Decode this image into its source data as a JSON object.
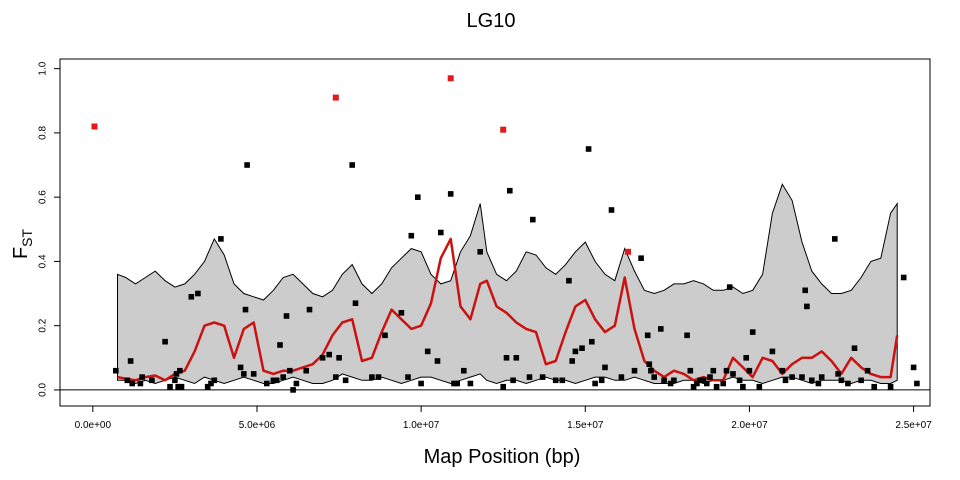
{
  "chart_data": {
    "type": "scatter",
    "title": "LG10",
    "xlabel": "Map Position (bp)",
    "ylabel": {
      "main": "F",
      "sub": "ST"
    },
    "xlim": [
      -1000000,
      25500000
    ],
    "ylim": [
      -0.05,
      1.03
    ],
    "xticks": [
      0,
      5000000,
      10000000,
      15000000,
      20000000,
      25000000
    ],
    "xtick_labels": [
      "0.0e+00",
      "5.0e+06",
      "1.0e+07",
      "1.5e+07",
      "2.0e+07",
      "2.5e+07"
    ],
    "yticks": [
      0.0,
      0.2,
      0.4,
      0.6,
      0.8,
      1.0
    ],
    "ytick_labels": [
      "0.0",
      "0.2",
      "0.4",
      "0.6",
      "0.8",
      "1.0"
    ],
    "reference_line_y": 0,
    "colors": {
      "background": "#ffffff",
      "points": "#000000",
      "outlier_points": "#e31a1c",
      "mean_line": "#cc1111",
      "envelope_fill": "#cccccc",
      "envelope_stroke": "#000000"
    },
    "envelope": {
      "x": [
        750000,
        1000000,
        1300000,
        1600000,
        1900000,
        2200000,
        2500000,
        2800000,
        3100000,
        3400000,
        3700000,
        4000000,
        4300000,
        4600000,
        4900000,
        5200000,
        5500000,
        5800000,
        6100000,
        6400000,
        6700000,
        7000000,
        7300000,
        7600000,
        7900000,
        8200000,
        8500000,
        8800000,
        9100000,
        9400000,
        9700000,
        10000000,
        10300000,
        10600000,
        10900000,
        11200000,
        11500000,
        11800000,
        12000000,
        12300000,
        12600000,
        12900000,
        13200000,
        13500000,
        13800000,
        14100000,
        14400000,
        14700000,
        15000000,
        15300000,
        15600000,
        15900000,
        16200000,
        16500000,
        16800000,
        17100000,
        17400000,
        17700000,
        18000000,
        18300000,
        18600000,
        18900000,
        19200000,
        19500000,
        19800000,
        20100000,
        20400000,
        20700000,
        21000000,
        21300000,
        21600000,
        21900000,
        22200000,
        22500000,
        22800000,
        23100000,
        23400000,
        23700000,
        24000000,
        24300000,
        24500000
      ],
      "upper": [
        0.36,
        0.35,
        0.33,
        0.35,
        0.37,
        0.34,
        0.32,
        0.33,
        0.36,
        0.4,
        0.47,
        0.42,
        0.33,
        0.3,
        0.29,
        0.28,
        0.31,
        0.35,
        0.36,
        0.33,
        0.3,
        0.29,
        0.31,
        0.36,
        0.39,
        0.33,
        0.3,
        0.33,
        0.38,
        0.41,
        0.44,
        0.43,
        0.36,
        0.33,
        0.34,
        0.43,
        0.48,
        0.58,
        0.43,
        0.36,
        0.34,
        0.37,
        0.43,
        0.42,
        0.38,
        0.36,
        0.39,
        0.43,
        0.46,
        0.4,
        0.36,
        0.34,
        0.44,
        0.37,
        0.31,
        0.3,
        0.31,
        0.33,
        0.33,
        0.34,
        0.33,
        0.31,
        0.31,
        0.32,
        0.3,
        0.31,
        0.36,
        0.55,
        0.64,
        0.59,
        0.46,
        0.37,
        0.33,
        0.3,
        0.3,
        0.31,
        0.35,
        0.4,
        0.41,
        0.55,
        0.58
      ],
      "lower": [
        0.03,
        0.03,
        0.02,
        0.03,
        0.02,
        0.03,
        0.04,
        0.03,
        0.02,
        0.04,
        0.03,
        0.02,
        0.03,
        0.04,
        0.03,
        0.02,
        0.02,
        0.03,
        0.04,
        0.03,
        0.02,
        0.02,
        0.03,
        0.05,
        0.04,
        0.03,
        0.03,
        0.04,
        0.03,
        0.02,
        0.03,
        0.04,
        0.04,
        0.03,
        0.02,
        0.03,
        0.04,
        0.05,
        0.03,
        0.02,
        0.03,
        0.03,
        0.02,
        0.03,
        0.04,
        0.03,
        0.03,
        0.02,
        0.03,
        0.04,
        0.04,
        0.03,
        0.03,
        0.04,
        0.03,
        0.02,
        0.02,
        0.02,
        0.03,
        0.03,
        0.02,
        0.03,
        0.03,
        0.04,
        0.03,
        0.03,
        0.02,
        0.03,
        0.04,
        0.04,
        0.03,
        0.02,
        0.03,
        0.03,
        0.03,
        0.02,
        0.03,
        0.03,
        0.02,
        0.02,
        0.03
      ]
    },
    "mean_line": {
      "x": [
        750000,
        1000000,
        1300000,
        1600000,
        1900000,
        2200000,
        2500000,
        2800000,
        3100000,
        3400000,
        3700000,
        4000000,
        4300000,
        4600000,
        4900000,
        5200000,
        5500000,
        5800000,
        6100000,
        6400000,
        6700000,
        7000000,
        7300000,
        7600000,
        7900000,
        8200000,
        8500000,
        8800000,
        9100000,
        9400000,
        9700000,
        10000000,
        10300000,
        10600000,
        10900000,
        11200000,
        11500000,
        11800000,
        12000000,
        12300000,
        12600000,
        12900000,
        13200000,
        13500000,
        13800000,
        14100000,
        14400000,
        14700000,
        15000000,
        15300000,
        15600000,
        15900000,
        16200000,
        16500000,
        16800000,
        17100000,
        17400000,
        17700000,
        18000000,
        18300000,
        18600000,
        18900000,
        19200000,
        19500000,
        19800000,
        20100000,
        20400000,
        20700000,
        21000000,
        21300000,
        21600000,
        21900000,
        22200000,
        22500000,
        22800000,
        23100000,
        23400000,
        23700000,
        24000000,
        24300000,
        24500000
      ],
      "y": [
        0.04,
        0.035,
        0.03,
        0.04,
        0.045,
        0.03,
        0.05,
        0.06,
        0.12,
        0.2,
        0.21,
        0.2,
        0.1,
        0.19,
        0.21,
        0.06,
        0.05,
        0.06,
        0.06,
        0.07,
        0.08,
        0.11,
        0.17,
        0.21,
        0.22,
        0.09,
        0.1,
        0.18,
        0.25,
        0.22,
        0.19,
        0.2,
        0.27,
        0.41,
        0.47,
        0.26,
        0.22,
        0.33,
        0.34,
        0.26,
        0.24,
        0.21,
        0.19,
        0.18,
        0.08,
        0.09,
        0.18,
        0.26,
        0.28,
        0.22,
        0.18,
        0.2,
        0.35,
        0.19,
        0.09,
        0.06,
        0.04,
        0.06,
        0.05,
        0.03,
        0.04,
        0.03,
        0.03,
        0.1,
        0.07,
        0.04,
        0.1,
        0.09,
        0.05,
        0.08,
        0.1,
        0.1,
        0.12,
        0.09,
        0.05,
        0.1,
        0.07,
        0.05,
        0.04,
        0.04,
        0.17
      ]
    },
    "points": [
      {
        "x": 700000,
        "y": 0.06
      },
      {
        "x": 1050000,
        "y": 0.03
      },
      {
        "x": 1150000,
        "y": 0.09
      },
      {
        "x": 1200000,
        "y": 0.02
      },
      {
        "x": 1450000,
        "y": 0.02
      },
      {
        "x": 1500000,
        "y": 0.04
      },
      {
        "x": 1800000,
        "y": 0.03
      },
      {
        "x": 2200000,
        "y": 0.15
      },
      {
        "x": 2350000,
        "y": 0.01
      },
      {
        "x": 2500000,
        "y": 0.03
      },
      {
        "x": 2550000,
        "y": 0.05
      },
      {
        "x": 2600000,
        "y": 0.01
      },
      {
        "x": 2650000,
        "y": 0.06
      },
      {
        "x": 2700000,
        "y": 0.01
      },
      {
        "x": 3000000,
        "y": 0.29
      },
      {
        "x": 3200000,
        "y": 0.3
      },
      {
        "x": 3500000,
        "y": 0.01
      },
      {
        "x": 3600000,
        "y": 0.02
      },
      {
        "x": 3700000,
        "y": 0.03
      },
      {
        "x": 3900000,
        "y": 0.47
      },
      {
        "x": 4500000,
        "y": 0.07
      },
      {
        "x": 4600000,
        "y": 0.05
      },
      {
        "x": 4650000,
        "y": 0.25
      },
      {
        "x": 4700000,
        "y": 0.7
      },
      {
        "x": 4900000,
        "y": 0.05
      },
      {
        "x": 5300000,
        "y": 0.02
      },
      {
        "x": 5500000,
        "y": 0.03
      },
      {
        "x": 5600000,
        "y": 0.03
      },
      {
        "x": 5700000,
        "y": 0.14
      },
      {
        "x": 5800000,
        "y": 0.04
      },
      {
        "x": 5900000,
        "y": 0.23
      },
      {
        "x": 6000000,
        "y": 0.06
      },
      {
        "x": 6100000,
        "y": 0.0
      },
      {
        "x": 6200000,
        "y": 0.02
      },
      {
        "x": 6500000,
        "y": 0.06
      },
      {
        "x": 6600000,
        "y": 0.25
      },
      {
        "x": 7000000,
        "y": 0.1
      },
      {
        "x": 7200000,
        "y": 0.11
      },
      {
        "x": 7400000,
        "y": 0.04
      },
      {
        "x": 7500000,
        "y": 0.1
      },
      {
        "x": 7700000,
        "y": 0.03
      },
      {
        "x": 7900000,
        "y": 0.7
      },
      {
        "x": 8000000,
        "y": 0.27
      },
      {
        "x": 8500000,
        "y": 0.04
      },
      {
        "x": 8700000,
        "y": 0.04
      },
      {
        "x": 8900000,
        "y": 0.17
      },
      {
        "x": 9400000,
        "y": 0.24
      },
      {
        "x": 9600000,
        "y": 0.04
      },
      {
        "x": 9700000,
        "y": 0.48
      },
      {
        "x": 9900000,
        "y": 0.6
      },
      {
        "x": 10000000,
        "y": 0.02
      },
      {
        "x": 10200000,
        "y": 0.12
      },
      {
        "x": 10500000,
        "y": 0.09
      },
      {
        "x": 10600000,
        "y": 0.49
      },
      {
        "x": 10900000,
        "y": 0.61
      },
      {
        "x": 11000000,
        "y": 0.02
      },
      {
        "x": 11100000,
        "y": 0.02
      },
      {
        "x": 11300000,
        "y": 0.06
      },
      {
        "x": 11500000,
        "y": 0.02
      },
      {
        "x": 11800000,
        "y": 0.43
      },
      {
        "x": 12500000,
        "y": 0.01
      },
      {
        "x": 12600000,
        "y": 0.1
      },
      {
        "x": 12700000,
        "y": 0.62
      },
      {
        "x": 12800000,
        "y": 0.03
      },
      {
        "x": 12900000,
        "y": 0.1
      },
      {
        "x": 13300000,
        "y": 0.04
      },
      {
        "x": 13400000,
        "y": 0.53
      },
      {
        "x": 13700000,
        "y": 0.04
      },
      {
        "x": 14100000,
        "y": 0.03
      },
      {
        "x": 14300000,
        "y": 0.03
      },
      {
        "x": 14500000,
        "y": 0.34
      },
      {
        "x": 14600000,
        "y": 0.09
      },
      {
        "x": 14700000,
        "y": 0.12
      },
      {
        "x": 14900000,
        "y": 0.13
      },
      {
        "x": 15100000,
        "y": 0.75
      },
      {
        "x": 15200000,
        "y": 0.15
      },
      {
        "x": 15300000,
        "y": 0.02
      },
      {
        "x": 15500000,
        "y": 0.03
      },
      {
        "x": 15600000,
        "y": 0.07
      },
      {
        "x": 15800000,
        "y": 0.56
      },
      {
        "x": 16100000,
        "y": 0.04
      },
      {
        "x": 16500000,
        "y": 0.06
      },
      {
        "x": 16700000,
        "y": 0.41
      },
      {
        "x": 16900000,
        "y": 0.17
      },
      {
        "x": 16950000,
        "y": 0.08
      },
      {
        "x": 17000000,
        "y": 0.06
      },
      {
        "x": 17100000,
        "y": 0.04
      },
      {
        "x": 17300000,
        "y": 0.19
      },
      {
        "x": 17400000,
        "y": 0.03
      },
      {
        "x": 17600000,
        "y": 0.02
      },
      {
        "x": 17700000,
        "y": 0.03
      },
      {
        "x": 18100000,
        "y": 0.17
      },
      {
        "x": 18200000,
        "y": 0.06
      },
      {
        "x": 18300000,
        "y": 0.01
      },
      {
        "x": 18400000,
        "y": 0.02
      },
      {
        "x": 18500000,
        "y": 0.03
      },
      {
        "x": 18600000,
        "y": 0.03
      },
      {
        "x": 18700000,
        "y": 0.02
      },
      {
        "x": 18800000,
        "y": 0.04
      },
      {
        "x": 18900000,
        "y": 0.06
      },
      {
        "x": 19000000,
        "y": 0.01
      },
      {
        "x": 19200000,
        "y": 0.02
      },
      {
        "x": 19300000,
        "y": 0.06
      },
      {
        "x": 19400000,
        "y": 0.32
      },
      {
        "x": 19500000,
        "y": 0.05
      },
      {
        "x": 19700000,
        "y": 0.03
      },
      {
        "x": 19800000,
        "y": 0.01
      },
      {
        "x": 19900000,
        "y": 0.1
      },
      {
        "x": 20000000,
        "y": 0.06
      },
      {
        "x": 20100000,
        "y": 0.18
      },
      {
        "x": 20300000,
        "y": 0.01
      },
      {
        "x": 20700000,
        "y": 0.12
      },
      {
        "x": 21000000,
        "y": 0.06
      },
      {
        "x": 21100000,
        "y": 0.03
      },
      {
        "x": 21300000,
        "y": 0.04
      },
      {
        "x": 21600000,
        "y": 0.04
      },
      {
        "x": 21700000,
        "y": 0.31
      },
      {
        "x": 21750000,
        "y": 0.26
      },
      {
        "x": 21900000,
        "y": 0.03
      },
      {
        "x": 22100000,
        "y": 0.02
      },
      {
        "x": 22200000,
        "y": 0.04
      },
      {
        "x": 22600000,
        "y": 0.47
      },
      {
        "x": 22700000,
        "y": 0.05
      },
      {
        "x": 22800000,
        "y": 0.03
      },
      {
        "x": 23000000,
        "y": 0.02
      },
      {
        "x": 23200000,
        "y": 0.13
      },
      {
        "x": 23400000,
        "y": 0.03
      },
      {
        "x": 23600000,
        "y": 0.06
      },
      {
        "x": 23800000,
        "y": 0.01
      },
      {
        "x": 24300000,
        "y": 0.01
      },
      {
        "x": 24700000,
        "y": 0.35
      },
      {
        "x": 25000000,
        "y": 0.07
      },
      {
        "x": 25100000,
        "y": 0.02
      }
    ],
    "outlier_points": [
      {
        "x": 50000,
        "y": 0.82
      },
      {
        "x": 7400000,
        "y": 0.91
      },
      {
        "x": 10900000,
        "y": 0.97
      },
      {
        "x": 12500000,
        "y": 0.81
      },
      {
        "x": 16300000,
        "y": 0.43
      }
    ]
  }
}
